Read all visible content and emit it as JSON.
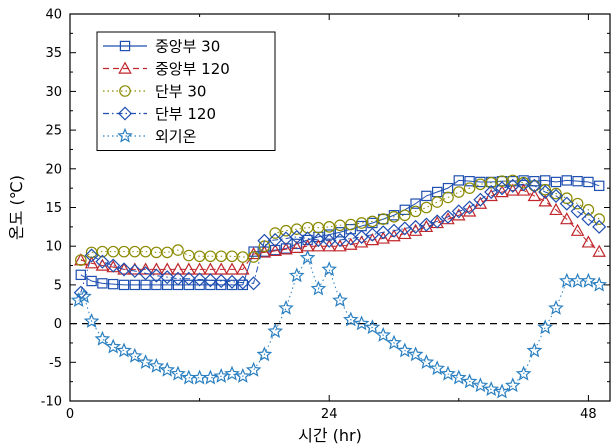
{
  "chart_data": {
    "type": "line",
    "xlabel": "시간 (hr)",
    "ylabel": "온도 (℃)",
    "xlim": [
      0,
      50
    ],
    "ylim": [
      -10,
      40
    ],
    "x_ticks": [
      0,
      24,
      48
    ],
    "y_ticks": [
      -10,
      -5,
      0,
      5,
      10,
      15,
      20,
      25,
      30,
      35,
      40
    ],
    "grid": false,
    "legend_position": "top-left",
    "reference_line": {
      "y": 0,
      "style": "dashed",
      "color": "#000000"
    },
    "series": [
      {
        "name": "중앙부 30",
        "marker": "square",
        "line_style": "solid",
        "color": "#1f4fb0",
        "x": [
          1,
          2,
          3,
          4,
          5,
          6,
          7,
          8,
          9,
          10,
          11,
          12,
          13,
          14,
          15,
          16,
          17,
          18,
          19,
          20,
          21,
          22,
          23,
          24,
          25,
          26,
          27,
          28,
          29,
          30,
          31,
          32,
          33,
          34,
          35,
          36,
          37,
          38,
          39,
          40,
          41,
          42,
          43,
          44,
          45,
          46,
          47,
          48,
          49
        ],
        "y": [
          6.3,
          5.5,
          5.2,
          5.1,
          5.0,
          5.0,
          5.0,
          5.0,
          5.0,
          5.0,
          5.0,
          5.0,
          5.0,
          5.0,
          5.0,
          5.0,
          9.3,
          9.3,
          9.5,
          9.7,
          10.3,
          10.8,
          11.2,
          11.5,
          11.8,
          12.2,
          12.6,
          13.0,
          13.5,
          14.0,
          14.7,
          15.5,
          16.5,
          17.0,
          17.5,
          18.5,
          18.4,
          18.3,
          18.3,
          18.4,
          18.4,
          18.5,
          18.4,
          18.5,
          18.3,
          18.5,
          18.4,
          18.3,
          17.8
        ]
      },
      {
        "name": "중앙부 120",
        "marker": "triangle",
        "line_style": "dashed",
        "color": "#c0262b",
        "x": [
          1,
          2,
          3,
          4,
          5,
          6,
          7,
          8,
          9,
          10,
          11,
          12,
          13,
          14,
          15,
          16,
          17,
          18,
          19,
          20,
          21,
          22,
          23,
          24,
          25,
          26,
          27,
          28,
          29,
          30,
          31,
          32,
          33,
          34,
          35,
          36,
          37,
          38,
          39,
          40,
          41,
          42,
          43,
          44,
          45,
          46,
          47,
          48,
          49
        ],
        "y": [
          8.2,
          7.8,
          7.5,
          7.3,
          7.0,
          7.0,
          7.0,
          7.0,
          7.0,
          7.0,
          7.0,
          7.0,
          7.0,
          7.0,
          7.0,
          7.0,
          9.0,
          9.2,
          9.4,
          9.6,
          9.8,
          10.0,
          10.0,
          10.0,
          10.0,
          10.2,
          10.5,
          10.8,
          11.0,
          11.3,
          11.6,
          12.0,
          12.5,
          13.0,
          13.5,
          14.0,
          14.5,
          15.5,
          16.5,
          17.0,
          17.2,
          17.2,
          16.5,
          15.8,
          14.7,
          13.5,
          12.0,
          10.5,
          9.3
        ]
      },
      {
        "name": "단부 30",
        "marker": "circle",
        "line_style": "dotted",
        "color": "#8a8a00",
        "x": [
          1,
          2,
          3,
          4,
          5,
          6,
          7,
          8,
          9,
          10,
          11,
          12,
          13,
          14,
          15,
          16,
          17,
          18,
          19,
          20,
          21,
          22,
          23,
          24,
          25,
          26,
          27,
          28,
          29,
          30,
          31,
          32,
          33,
          34,
          35,
          36,
          37,
          38,
          39,
          40,
          41,
          42,
          43,
          44,
          45,
          46,
          47,
          48,
          49
        ],
        "y": [
          8.2,
          9.2,
          9.3,
          9.3,
          9.3,
          9.3,
          9.3,
          9.2,
          9.2,
          9.5,
          8.8,
          8.7,
          8.7,
          8.7,
          8.7,
          8.6,
          8.6,
          10.0,
          11.7,
          12.0,
          12.2,
          12.4,
          12.4,
          12.5,
          12.7,
          12.8,
          13.0,
          13.2,
          13.5,
          13.8,
          14.0,
          14.5,
          15.0,
          15.7,
          16.3,
          17.0,
          17.5,
          18.0,
          18.2,
          18.4,
          18.5,
          18.2,
          17.8,
          17.3,
          16.8,
          16.2,
          15.5,
          14.7,
          13.5
        ]
      },
      {
        "name": "단부 120",
        "marker": "diamond",
        "line_style": "dashdot",
        "color": "#1f4fb0",
        "x": [
          1,
          2,
          3,
          4,
          5,
          6,
          7,
          8,
          9,
          10,
          11,
          12,
          13,
          14,
          15,
          16,
          17,
          18,
          19,
          20,
          21,
          22,
          23,
          24,
          25,
          26,
          27,
          28,
          29,
          30,
          31,
          32,
          33,
          34,
          35,
          36,
          37,
          38,
          39,
          40,
          41,
          42,
          43,
          44,
          45,
          46,
          47,
          48,
          49
        ],
        "y": [
          4.0,
          8.8,
          8.0,
          7.5,
          7.0,
          6.8,
          6.5,
          6.2,
          6.0,
          5.8,
          5.8,
          5.7,
          5.6,
          5.5,
          5.4,
          5.3,
          5.2,
          10.7,
          10.8,
          11.0,
          11.2,
          11.0,
          10.8,
          10.7,
          10.8,
          11.0,
          11.2,
          11.5,
          11.8,
          12.0,
          12.3,
          12.5,
          12.8,
          13.2,
          13.8,
          14.5,
          15.0,
          16.0,
          17.0,
          17.5,
          17.8,
          18.0,
          17.8,
          17.0,
          16.5,
          15.5,
          14.5,
          13.5,
          12.5
        ]
      },
      {
        "name": "외기온",
        "marker": "star",
        "line_style": "dotted",
        "color": "#2a7fc0",
        "x": [
          0.8,
          1.3,
          2.0,
          3.0,
          4.0,
          5.0,
          6.0,
          7.0,
          8.0,
          9.0,
          10.0,
          11.0,
          12.0,
          13.0,
          14.0,
          15.0,
          16.0,
          17.0,
          18.0,
          19.0,
          20.0,
          21.0,
          22.0,
          23.0,
          24.0,
          25.0,
          26.0,
          27.0,
          28.0,
          29.0,
          30.0,
          31.0,
          32.0,
          33.0,
          34.0,
          35.0,
          36.0,
          37.0,
          38.0,
          39.0,
          40.0,
          41.0,
          42.0,
          43.0,
          44.0,
          45.0,
          46.0,
          47.0,
          48.0,
          49.0
        ],
        "y": [
          3.0,
          3.5,
          0.3,
          -2.0,
          -3.0,
          -3.5,
          -4.2,
          -5.0,
          -5.5,
          -6.0,
          -6.5,
          -7.0,
          -7.0,
          -7.0,
          -6.8,
          -6.5,
          -6.8,
          -6.0,
          -4.0,
          -1.0,
          2.0,
          6.2,
          8.5,
          4.5,
          7.0,
          3.0,
          0.5,
          0.0,
          -0.5,
          -1.5,
          -2.5,
          -3.5,
          -4.0,
          -5.0,
          -5.8,
          -6.5,
          -7.0,
          -7.5,
          -8.0,
          -8.5,
          -8.8,
          -8.0,
          -6.5,
          -3.5,
          -0.5,
          2.0,
          5.5,
          5.5,
          5.5,
          5.0
        ]
      }
    ]
  }
}
